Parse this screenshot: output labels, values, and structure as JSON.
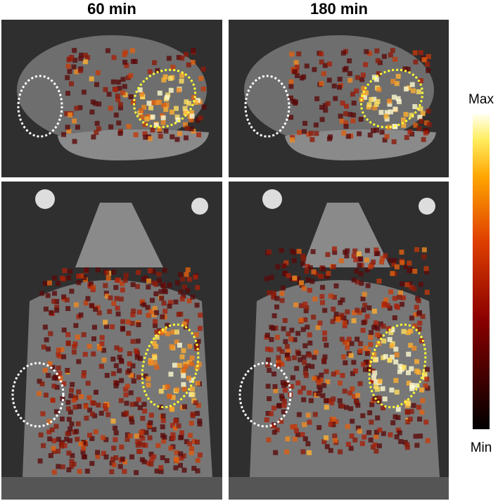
{
  "columns": [
    "60 min",
    "180 min"
  ],
  "colorbar": {
    "max_label": "Max",
    "min_label": "Min"
  }
}
